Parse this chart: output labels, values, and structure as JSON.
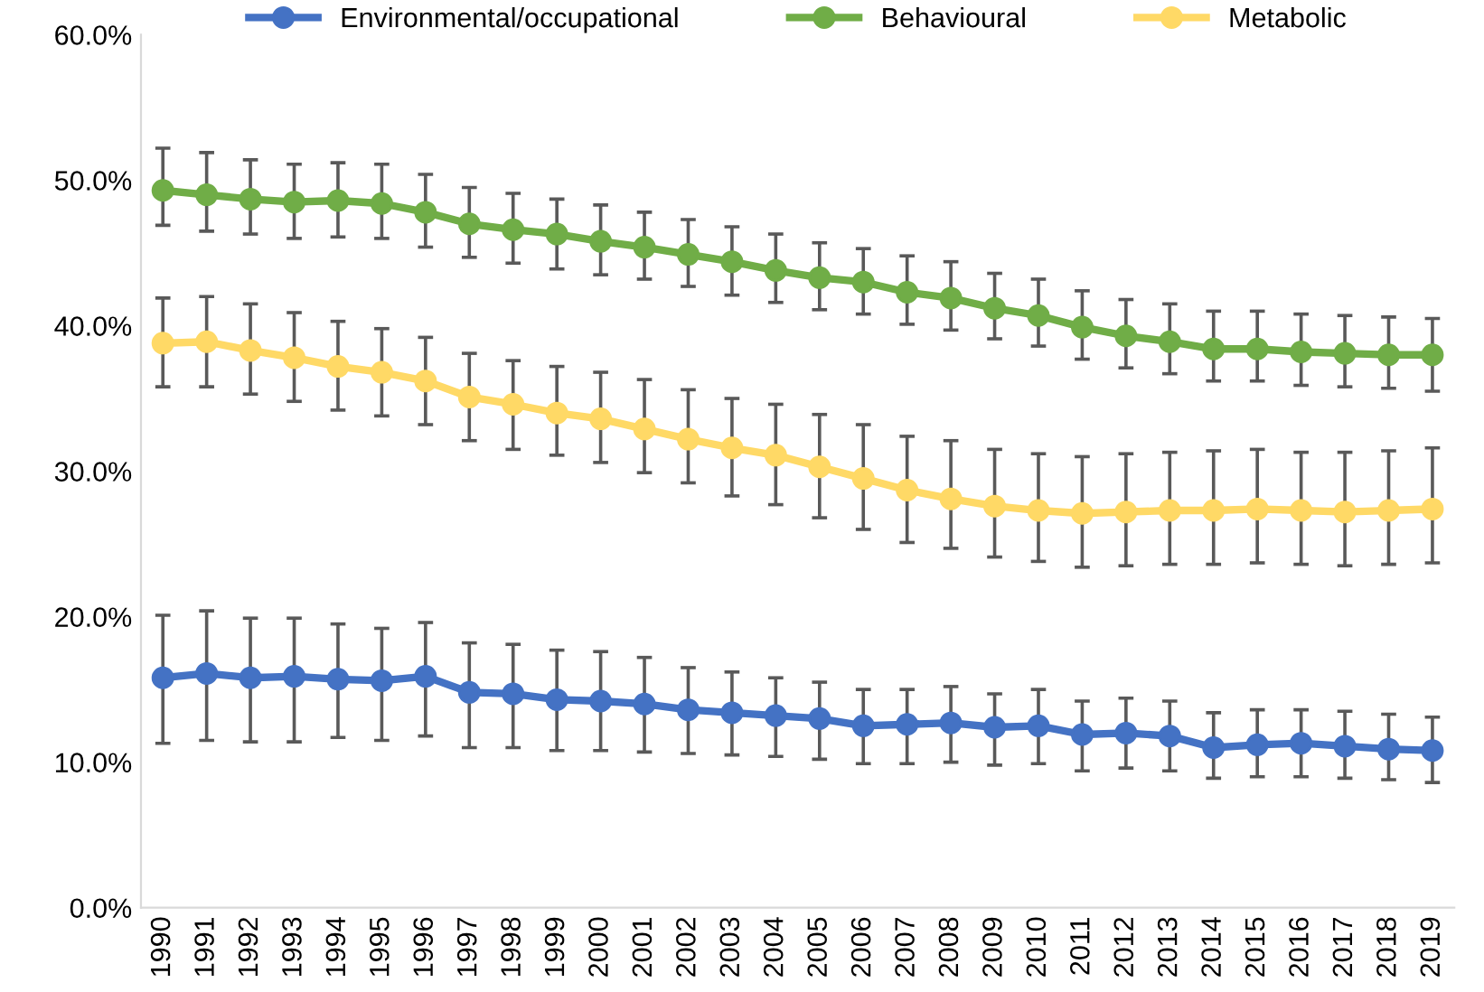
{
  "chart_data": {
    "type": "line",
    "categories": [
      "1990",
      "1991",
      "1992",
      "1993",
      "1994",
      "1995",
      "1996",
      "1997",
      "1998",
      "1999",
      "2000",
      "2001",
      "2002",
      "2003",
      "2004",
      "2005",
      "2006",
      "2007",
      "2008",
      "2009",
      "2010",
      "2011",
      "2012",
      "2013",
      "2014",
      "2015",
      "2016",
      "2017",
      "2018",
      "2019"
    ],
    "series": [
      {
        "name": "Environmental/occupational",
        "color": "#4472c4",
        "values": [
          15.8,
          16.1,
          15.8,
          15.9,
          15.7,
          15.6,
          15.9,
          14.8,
          14.7,
          14.3,
          14.2,
          14.0,
          13.6,
          13.4,
          13.2,
          13.0,
          12.5,
          12.6,
          12.7,
          12.4,
          12.5,
          11.9,
          12.0,
          11.8,
          11.0,
          11.2,
          11.3,
          11.1,
          10.9,
          10.8
        ],
        "errors": [
          [
            11.3,
            20.1
          ],
          [
            11.5,
            20.4
          ],
          [
            11.4,
            19.9
          ],
          [
            11.4,
            19.9
          ],
          [
            11.7,
            19.5
          ],
          [
            11.5,
            19.2
          ],
          [
            11.8,
            19.6
          ],
          [
            11.0,
            18.2
          ],
          [
            11.0,
            18.1
          ],
          [
            10.8,
            17.7
          ],
          [
            10.8,
            17.6
          ],
          [
            10.7,
            17.2
          ],
          [
            10.6,
            16.5
          ],
          [
            10.5,
            16.2
          ],
          [
            10.4,
            15.8
          ],
          [
            10.2,
            15.5
          ],
          [
            9.9,
            15.0
          ],
          [
            9.9,
            15.0
          ],
          [
            10.0,
            15.2
          ],
          [
            9.8,
            14.7
          ],
          [
            9.9,
            15.0
          ],
          [
            9.4,
            14.2
          ],
          [
            9.6,
            14.4
          ],
          [
            9.4,
            14.2
          ],
          [
            8.9,
            13.4
          ],
          [
            9.0,
            13.6
          ],
          [
            9.0,
            13.6
          ],
          [
            8.9,
            13.5
          ],
          [
            8.8,
            13.3
          ],
          [
            8.6,
            13.1
          ]
        ]
      },
      {
        "name": "Behavioural",
        "color": "#70ad47",
        "values": [
          49.3,
          49.0,
          48.7,
          48.5,
          48.6,
          48.4,
          47.8,
          47.0,
          46.6,
          46.3,
          45.8,
          45.4,
          44.9,
          44.4,
          43.8,
          43.3,
          43.0,
          42.3,
          41.9,
          41.2,
          40.7,
          39.9,
          39.3,
          38.9,
          38.4,
          38.4,
          38.2,
          38.1,
          38.0,
          38.0
        ],
        "errors": [
          [
            46.9,
            52.2
          ],
          [
            46.5,
            51.9
          ],
          [
            46.3,
            51.4
          ],
          [
            46.0,
            51.1
          ],
          [
            46.1,
            51.2
          ],
          [
            46.0,
            51.1
          ],
          [
            45.4,
            50.4
          ],
          [
            44.7,
            49.5
          ],
          [
            44.3,
            49.1
          ],
          [
            43.9,
            48.7
          ],
          [
            43.5,
            48.3
          ],
          [
            43.2,
            47.8
          ],
          [
            42.7,
            47.3
          ],
          [
            42.1,
            46.8
          ],
          [
            41.6,
            46.3
          ],
          [
            41.1,
            45.7
          ],
          [
            40.8,
            45.3
          ],
          [
            40.1,
            44.8
          ],
          [
            39.7,
            44.4
          ],
          [
            39.1,
            43.6
          ],
          [
            38.6,
            43.2
          ],
          [
            37.7,
            42.4
          ],
          [
            37.1,
            41.8
          ],
          [
            36.7,
            41.5
          ],
          [
            36.2,
            41.0
          ],
          [
            36.2,
            41.0
          ],
          [
            35.9,
            40.8
          ],
          [
            35.8,
            40.7
          ],
          [
            35.7,
            40.6
          ],
          [
            35.5,
            40.5
          ]
        ]
      },
      {
        "name": "Metabolic",
        "color": "#ffd966",
        "values": [
          38.8,
          38.9,
          38.3,
          37.8,
          37.2,
          36.8,
          36.2,
          35.1,
          34.6,
          34.0,
          33.6,
          32.9,
          32.2,
          31.6,
          31.1,
          30.3,
          29.5,
          28.7,
          28.1,
          27.6,
          27.3,
          27.1,
          27.2,
          27.3,
          27.3,
          27.4,
          27.3,
          27.2,
          27.3,
          27.4
        ],
        "errors": [
          [
            35.8,
            41.9
          ],
          [
            35.8,
            42.0
          ],
          [
            35.3,
            41.5
          ],
          [
            34.8,
            40.9
          ],
          [
            34.2,
            40.3
          ],
          [
            33.8,
            39.8
          ],
          [
            33.2,
            39.2
          ],
          [
            32.1,
            38.1
          ],
          [
            31.5,
            37.6
          ],
          [
            31.1,
            37.2
          ],
          [
            30.6,
            36.8
          ],
          [
            29.9,
            36.3
          ],
          [
            29.2,
            35.6
          ],
          [
            28.3,
            35.0
          ],
          [
            27.7,
            34.6
          ],
          [
            26.8,
            33.9
          ],
          [
            26.0,
            33.2
          ],
          [
            25.1,
            32.4
          ],
          [
            24.7,
            32.1
          ],
          [
            24.1,
            31.5
          ],
          [
            23.8,
            31.2
          ],
          [
            23.4,
            31.0
          ],
          [
            23.5,
            31.2
          ],
          [
            23.6,
            31.3
          ],
          [
            23.6,
            31.4
          ],
          [
            23.7,
            31.5
          ],
          [
            23.6,
            31.3
          ],
          [
            23.5,
            31.3
          ],
          [
            23.6,
            31.4
          ],
          [
            23.7,
            31.6
          ]
        ]
      }
    ],
    "ylim": [
      0,
      60
    ],
    "yticks": [
      {
        "value": 0,
        "label": "0.0%"
      },
      {
        "value": 10,
        "label": "10.0%"
      },
      {
        "value": 20,
        "label": "20.0%"
      },
      {
        "value": 30,
        "label": "30.0%"
      },
      {
        "value": 40,
        "label": "40.0%"
      },
      {
        "value": 50,
        "label": "50.0%"
      },
      {
        "value": 60,
        "label": "60.0%"
      }
    ],
    "grid": false,
    "legend": "top",
    "marker": "circle",
    "line_style": "solid"
  }
}
